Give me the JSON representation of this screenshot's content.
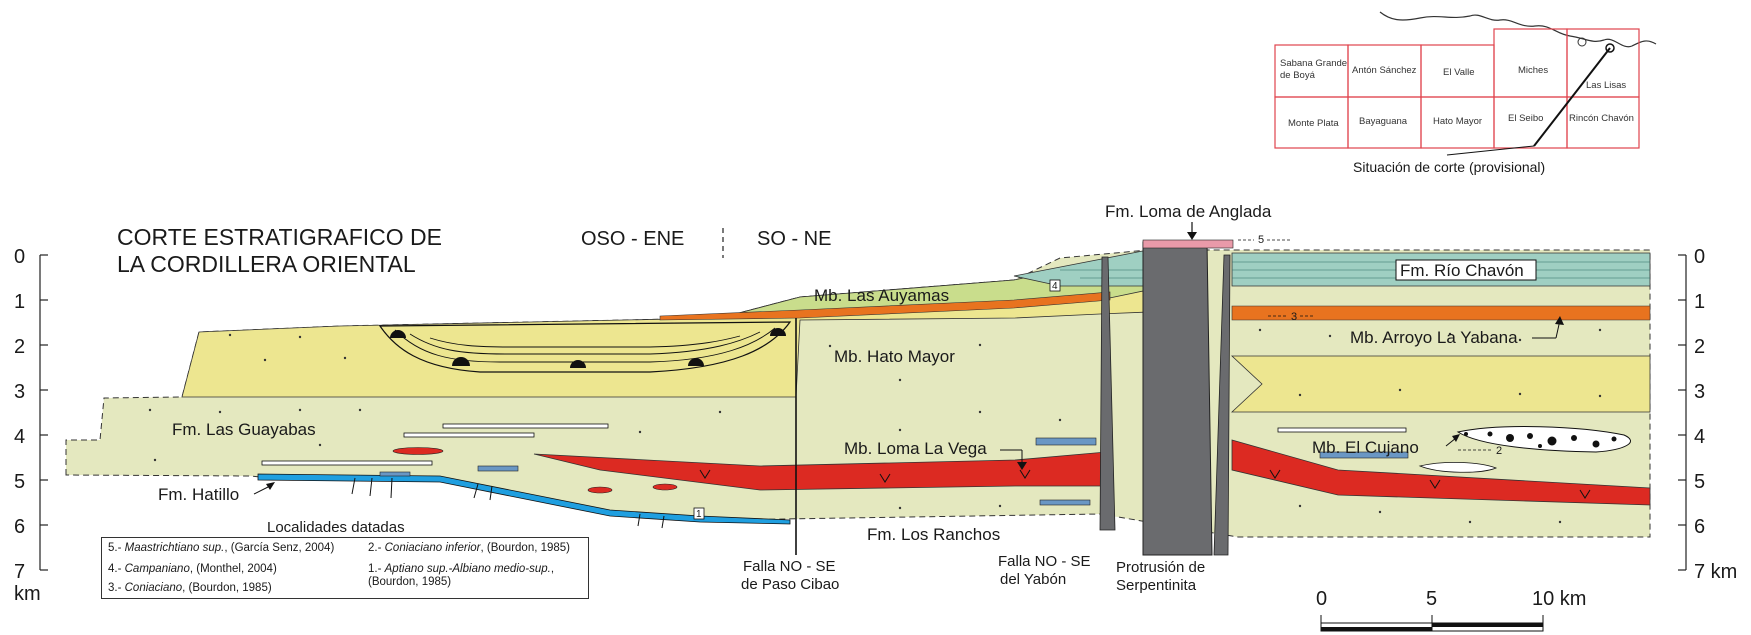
{
  "title": {
    "line1": "CORTE ESTRATIGRAFICO DE",
    "line2": "LA CORDILLERA ORIENTAL"
  },
  "orientation": {
    "left": "OSO - ENE",
    "right": "SO - NE"
  },
  "depth_axis": {
    "ticks": [
      "0",
      "1",
      "2",
      "3",
      "4",
      "5",
      "6",
      "7"
    ],
    "unit_left": "km",
    "unit_right": "7 km"
  },
  "formations": {
    "rio_chavon": "Fm. Río Chavón",
    "loma_anglada": "Fm. Loma de Anglada",
    "las_auyamas": "Mb. Las Auyamas",
    "hato_mayor": "Mb. Hato Mayor",
    "arroyo_la_yabana": "Mb. Arroyo La Yabana",
    "las_guayabas": "Fm. Las Guayabas",
    "loma_la_vega": "Mb. Loma La Vega",
    "el_cujano": "Mb. El Cujano",
    "hatillo": "Fm. Hatillo",
    "los_ranchos": "Fm. Los Ranchos"
  },
  "structures": {
    "falla_paso_cibao_l1": "Falla NO - SE",
    "falla_paso_cibao_l2": "de Paso Cibao",
    "falla_yabon_l1": "Falla NO - SE",
    "falla_yabon_l2": "del Yabón",
    "serpentinita_l1": "Protrusión de",
    "serpentinita_l2": "Serpentinita"
  },
  "locality_markers": [
    "1",
    "2",
    "3",
    "4",
    "5"
  ],
  "legend": {
    "title": "Localidades datadas",
    "items": [
      {
        "num": "5.-",
        "age": "Maastrichtiano sup.",
        "ref": ", (García Senz, 2004)"
      },
      {
        "num": "4.-",
        "age": "Campaniano",
        "ref": ", (Monthel, 2004)"
      },
      {
        "num": "3.-",
        "age": "Coniaciano",
        "ref": ", (Bourdon, 1985)"
      },
      {
        "num": "2.-",
        "age": "Coniaciano inferior",
        "ref": ", (Bourdon, 1985)"
      },
      {
        "num": "1.-",
        "age": "Aptiano sup.-Albiano medio-sup.",
        "ref": ",",
        "ref2": "(Bourdon, 1985)"
      }
    ]
  },
  "scale_bar": {
    "labels": [
      "0",
      "5",
      "10 km"
    ]
  },
  "index_map": {
    "cells_row1": [
      "Sabana Grande",
      "de Boyá",
      "Antón Sánchez",
      "El Valle",
      "Miches",
      "Las Lisas"
    ],
    "cells_row2": [
      "Monte Plata",
      "Bayaguana",
      "Hato Mayor",
      "El Seibo",
      "Rincón Chavón"
    ],
    "caption": "Situación de corte (provisional)"
  },
  "colors": {
    "pale_green": "#e4e8bf",
    "yellow": "#ede690",
    "olive_green": "#c9dd8c",
    "teal_limestone": "#9fcfc2",
    "orange": "#e8731f",
    "red": "#dc2a22",
    "serpentinite": "#6a6b6e",
    "blue_lens": "#6a97c4",
    "cyan_hatillo": "#1f9fe0",
    "pink_anglada": "#e99aa9"
  }
}
